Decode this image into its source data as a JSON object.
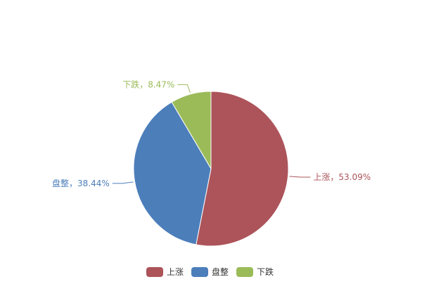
{
  "chart_data": {
    "type": "pie",
    "series": [
      {
        "name": "上涨",
        "value": 53.09,
        "label": "上涨，53.09%",
        "color": "#AC545A"
      },
      {
        "name": "盘整",
        "value": 38.44,
        "label": "盘整，38.44%",
        "color": "#4C7EBA"
      },
      {
        "name": "下跌",
        "value": 8.47,
        "label": "下跌，8.47%",
        "color": "#9BBB59"
      }
    ],
    "legend": {
      "position": "bottom-center",
      "entries": [
        "上涨",
        "盘整",
        "下跌"
      ]
    }
  }
}
